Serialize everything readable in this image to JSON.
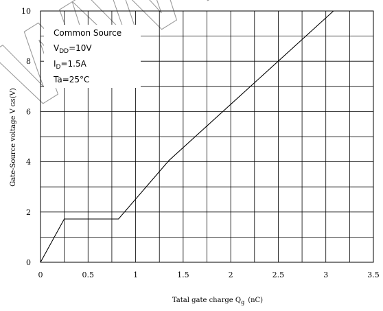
{
  "chart_data": {
    "type": "line",
    "title": "",
    "xlabel": "Tatal gate charge  Q",
    "xlabel_sub": "g",
    "xlabel_unit": "(nC)",
    "ylabel": "Gate-Source voltage  V",
    "ylabel_sub": "GS",
    "ylabel_unit": "(V)",
    "xlim": [
      0,
      3.5
    ],
    "ylim": [
      0,
      10
    ],
    "x_ticks": [
      "0",
      "0.5",
      "1",
      "1.5",
      "2",
      "2.5",
      "3",
      "3.5"
    ],
    "y_ticks": [
      "0",
      "2",
      "4",
      "6",
      "8",
      "10"
    ],
    "x_grid_step": 0.25,
    "y_grid_step": 1,
    "grid": true,
    "series": [
      {
        "x": [
          0,
          0.25,
          0.82,
          1.35,
          3.08
        ],
        "y": [
          0,
          1.72,
          1.72,
          4.05,
          10
        ]
      }
    ],
    "annotations": {
      "line1": "Common Source",
      "line2_main": "V",
      "line2_sub": "DD",
      "line2_rest": "=10V",
      "line3_main": "I",
      "line3_sub": "D",
      "line3_rest": "=1.5A",
      "line4": "Ta=25°C"
    },
    "watermark": "WWW.Q4OR"
  }
}
